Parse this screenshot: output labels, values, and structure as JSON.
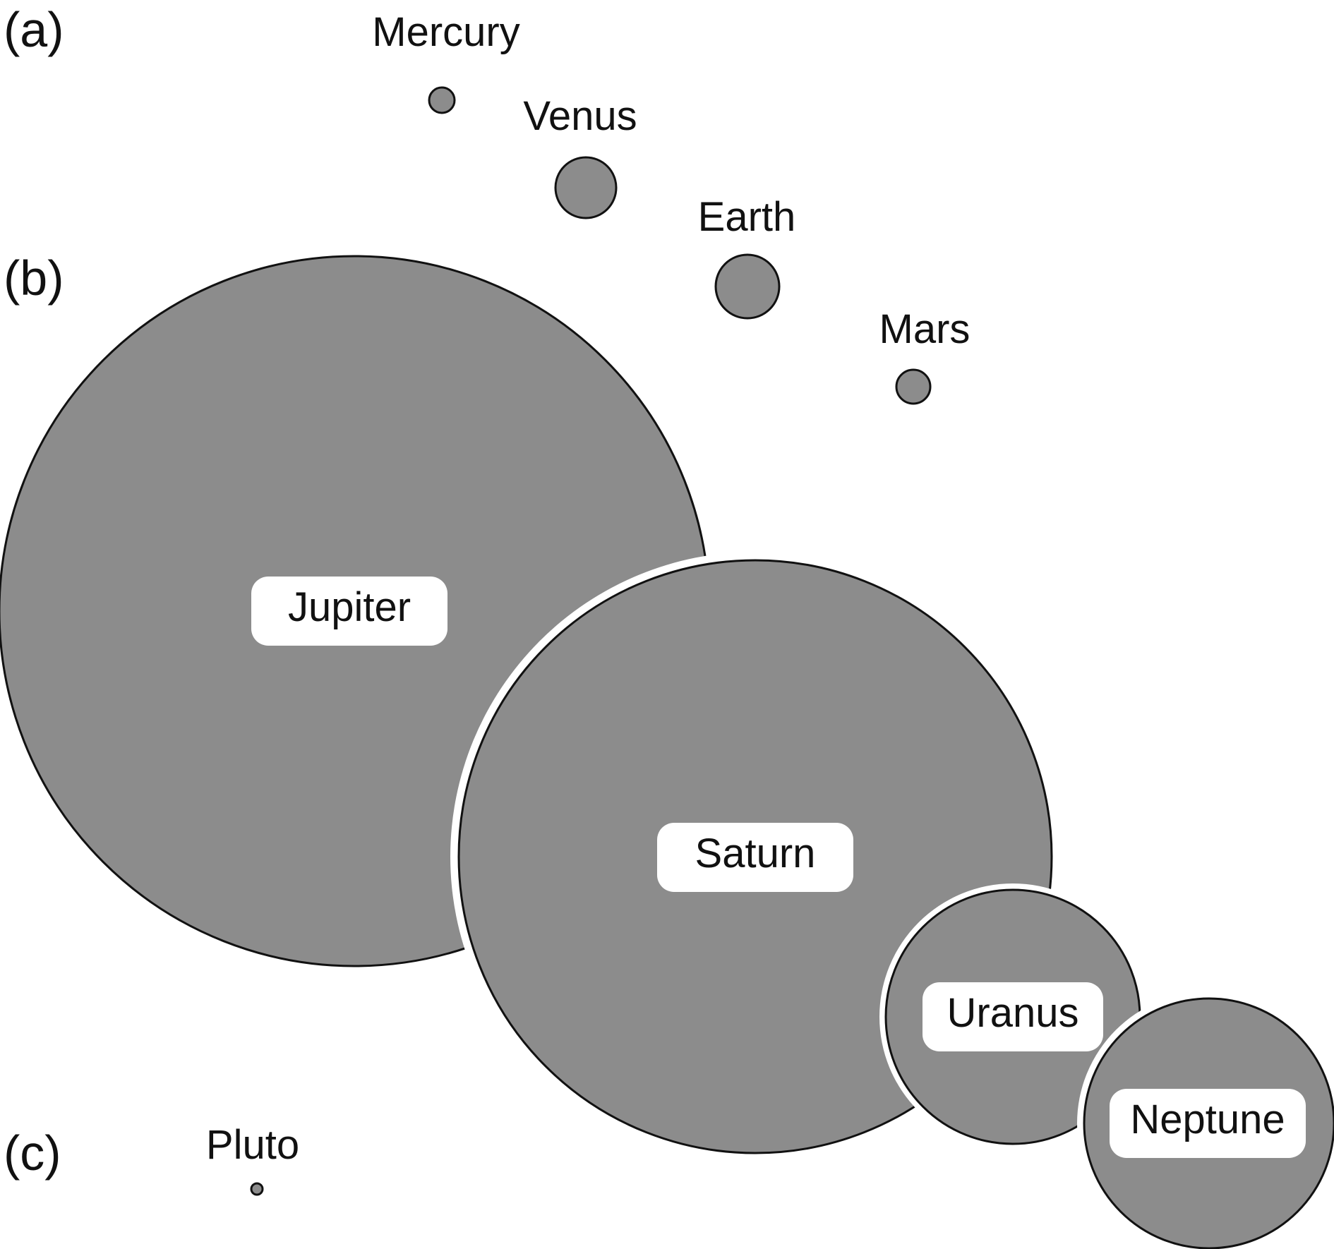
{
  "panels": [
    {
      "label": "(a)"
    },
    {
      "label": "(b)"
    },
    {
      "label": "(c)"
    }
  ],
  "colors": {
    "planet_fill": "#8c8c8c",
    "outline": "#111111",
    "badge_fill": "#ffffff",
    "background": "#ffffff"
  },
  "planets": [
    {
      "key": "mercury",
      "name": "Mercury"
    },
    {
      "key": "venus",
      "name": "Venus"
    },
    {
      "key": "earth",
      "name": "Earth"
    },
    {
      "key": "mars",
      "name": "Mars"
    },
    {
      "key": "jupiter",
      "name": "Jupiter"
    },
    {
      "key": "saturn",
      "name": "Saturn"
    },
    {
      "key": "uranus",
      "name": "Uranus"
    },
    {
      "key": "neptune",
      "name": "Neptune"
    },
    {
      "key": "pluto",
      "name": "Pluto"
    }
  ]
}
